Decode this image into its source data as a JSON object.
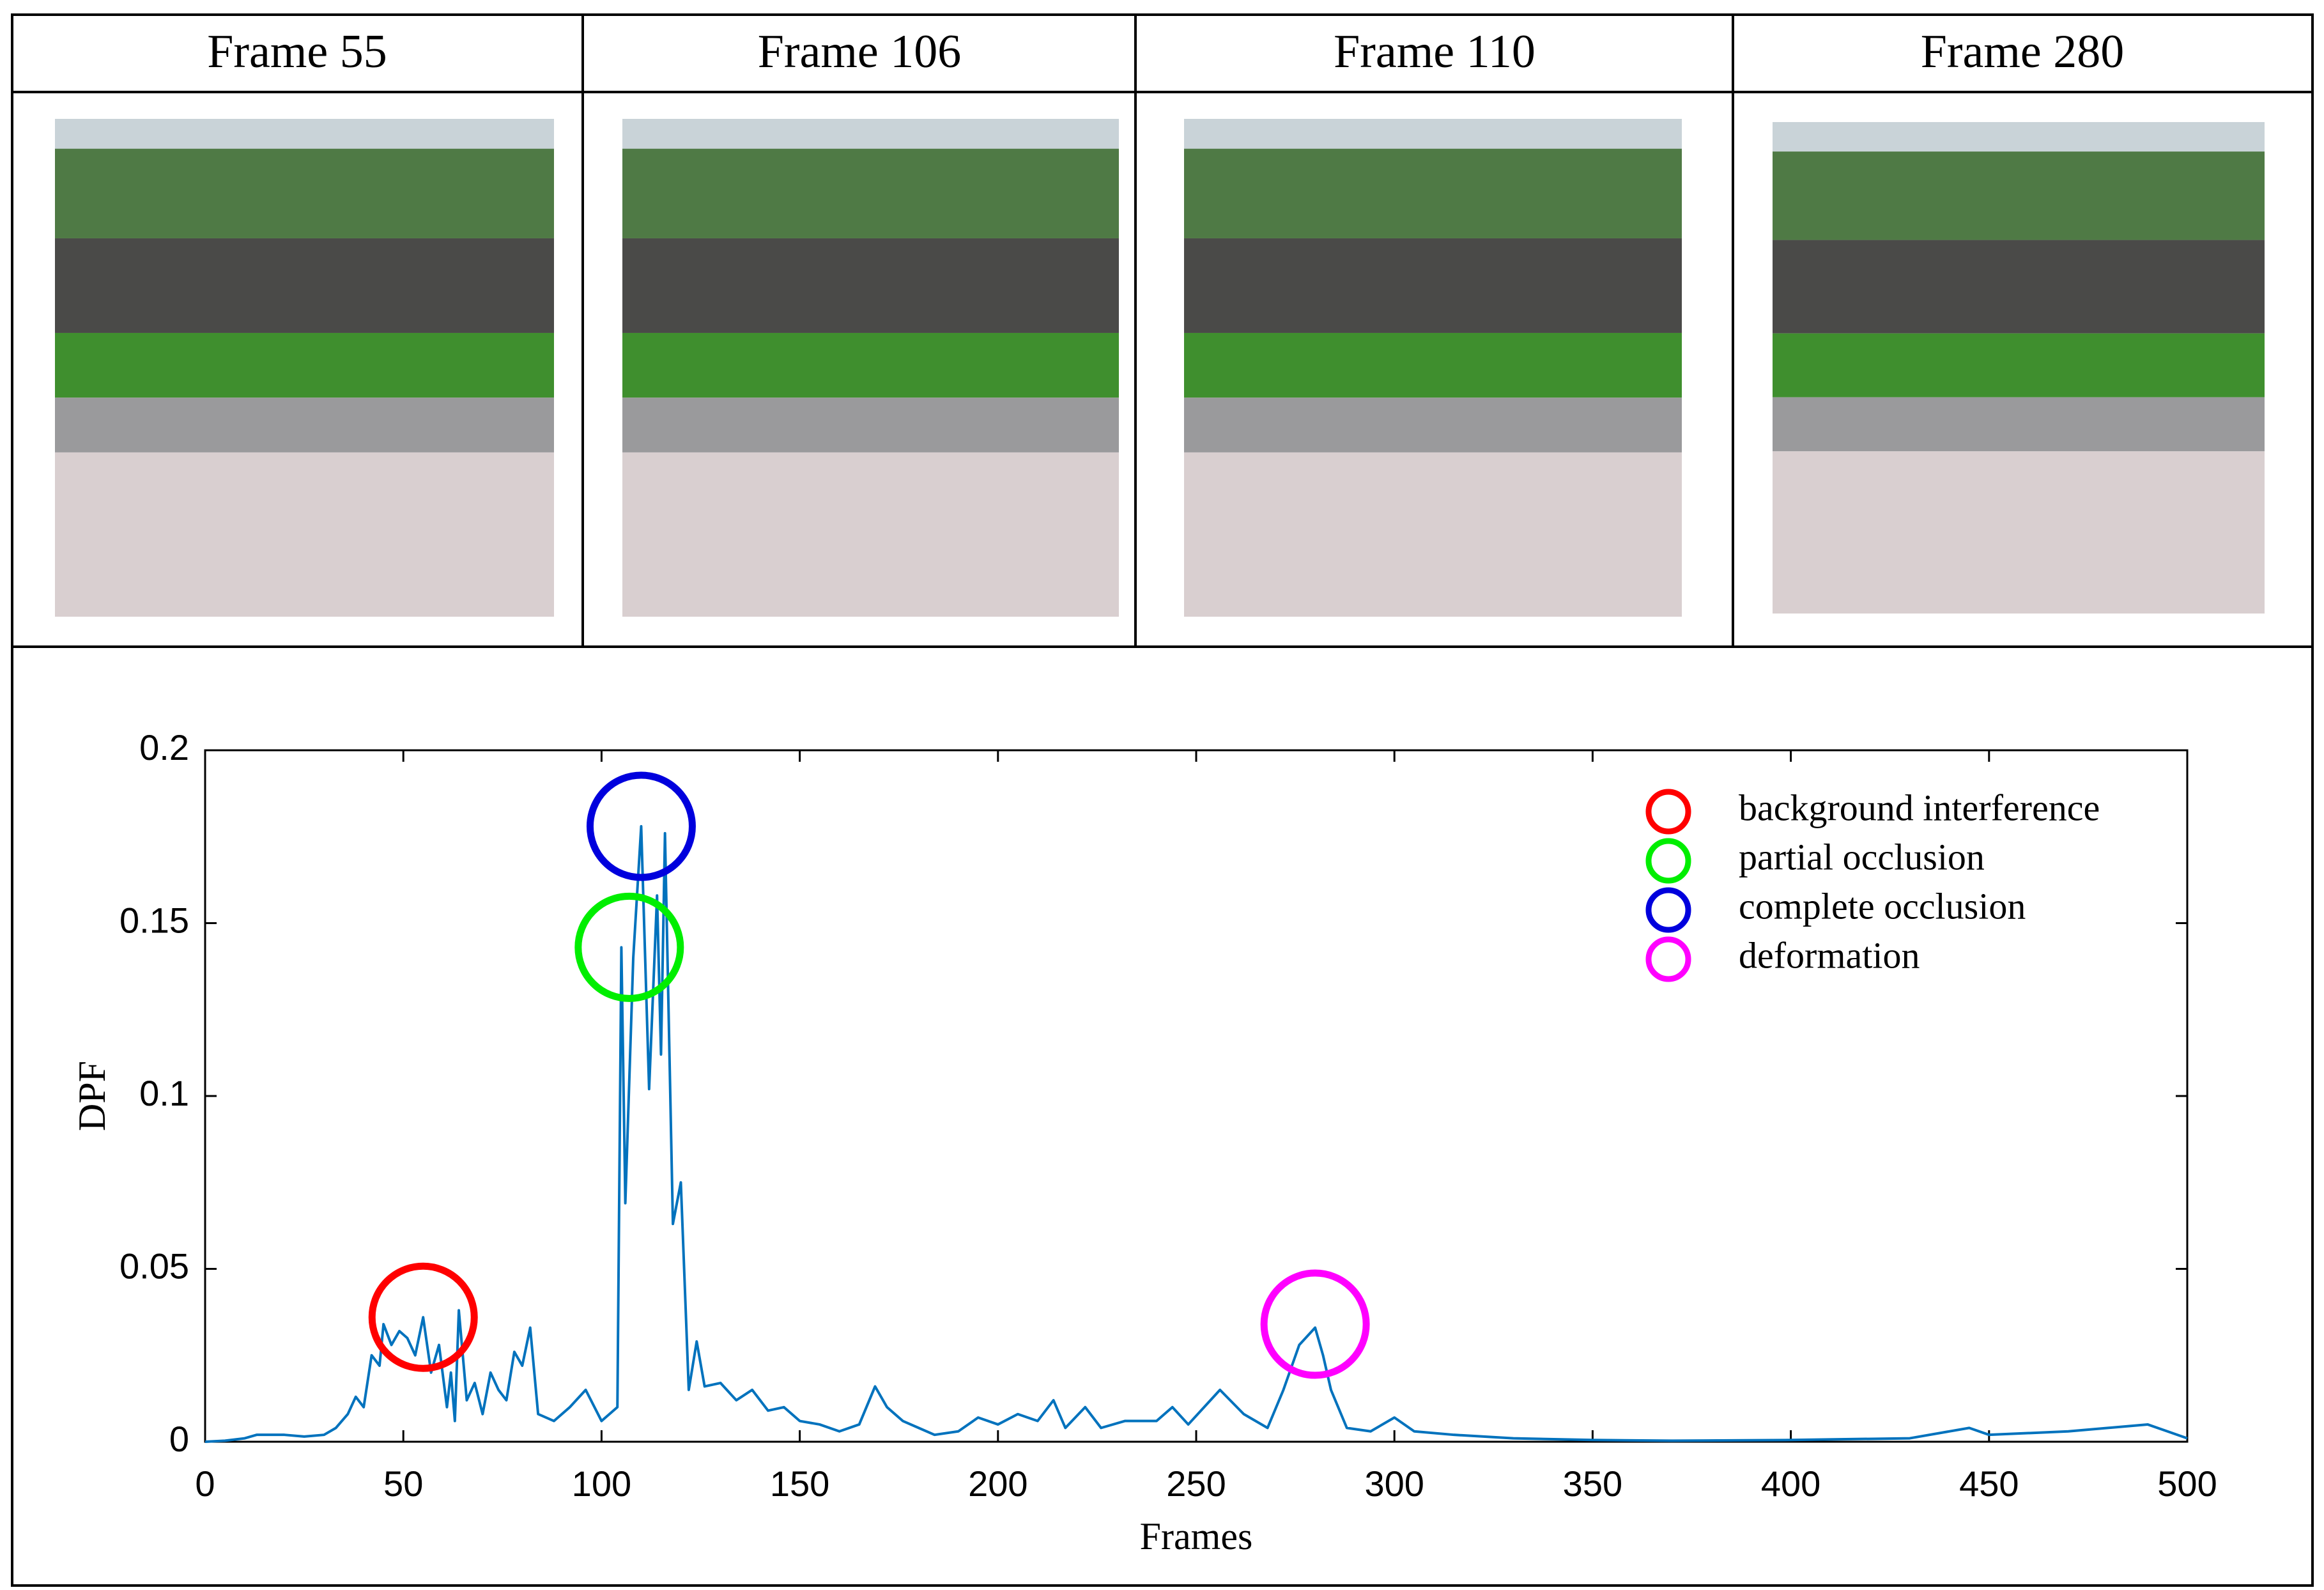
{
  "panels": [
    {
      "title": "Frame 55"
    },
    {
      "title": "Frame 106"
    },
    {
      "title": "Frame 110"
    },
    {
      "title": "Frame 280"
    }
  ],
  "chart_data": {
    "type": "line",
    "xlabel": "Frames",
    "ylabel": "DPF",
    "xlim": [
      0,
      500
    ],
    "xticks": [
      0,
      50,
      100,
      150,
      200,
      250,
      300,
      350,
      400,
      450,
      500
    ],
    "ylim": [
      0,
      0.2
    ],
    "yticks": [
      0,
      0.05,
      0.1,
      0.15,
      0.2
    ],
    "x": [
      0,
      5,
      10,
      13,
      20,
      25,
      30,
      33,
      36,
      38,
      40,
      42,
      44,
      45,
      47,
      49,
      51,
      53,
      55,
      57,
      59,
      61,
      62,
      63,
      64,
      66,
      68,
      70,
      72,
      74,
      76,
      78,
      80,
      82,
      84,
      88,
      92,
      96,
      100,
      104,
      105,
      106,
      108,
      110,
      112,
      114,
      115,
      116,
      118,
      120,
      122,
      124,
      126,
      130,
      134,
      138,
      142,
      146,
      150,
      155,
      160,
      165,
      169,
      172,
      176,
      180,
      184,
      190,
      195,
      200,
      205,
      210,
      214,
      217,
      222,
      226,
      232,
      240,
      244,
      248,
      256,
      262,
      268,
      272,
      276,
      280,
      282,
      284,
      288,
      294,
      300,
      305,
      315,
      330,
      350,
      370,
      400,
      430,
      445,
      450,
      470,
      490,
      495,
      500
    ],
    "series": [
      {
        "name": "DPF",
        "color": "#0072bd",
        "values": [
          0,
          0.0003,
          0.001,
          0.002,
          0.002,
          0.0015,
          0.002,
          0.004,
          0.008,
          0.013,
          0.01,
          0.025,
          0.022,
          0.034,
          0.028,
          0.032,
          0.03,
          0.025,
          0.036,
          0.02,
          0.028,
          0.01,
          0.02,
          0.006,
          0.038,
          0.012,
          0.017,
          0.008,
          0.02,
          0.015,
          0.012,
          0.026,
          0.022,
          0.033,
          0.008,
          0.006,
          0.01,
          0.015,
          0.006,
          0.01,
          0.143,
          0.069,
          0.14,
          0.178,
          0.102,
          0.158,
          0.112,
          0.176,
          0.063,
          0.075,
          0.015,
          0.029,
          0.016,
          0.017,
          0.012,
          0.015,
          0.009,
          0.01,
          0.006,
          0.005,
          0.003,
          0.005,
          0.016,
          0.01,
          0.006,
          0.004,
          0.002,
          0.003,
          0.007,
          0.005,
          0.008,
          0.006,
          0.012,
          0.004,
          0.01,
          0.004,
          0.006,
          0.006,
          0.01,
          0.005,
          0.015,
          0.008,
          0.004,
          0.015,
          0.028,
          0.033,
          0.025,
          0.015,
          0.004,
          0.003,
          0.007,
          0.003,
          0.002,
          0.001,
          0.0005,
          0.0003,
          0.0005,
          0.001,
          0.004,
          0.002,
          0.003,
          0.005,
          0.003,
          0.001
        ]
      }
    ],
    "markers": [
      {
        "name": "background interference",
        "color": "#ff0000",
        "x": 55,
        "y": 0.036
      },
      {
        "name": "partial occlusion",
        "color": "#00ee00",
        "x": 107,
        "y": 0.143
      },
      {
        "name": "complete occlusion",
        "color": "#0000dd",
        "x": 110,
        "y": 0.178
      },
      {
        "name": "deformation",
        "color": "#ff00ff",
        "x": 280,
        "y": 0.034
      }
    ],
    "legend": "upper right",
    "grid": false
  }
}
